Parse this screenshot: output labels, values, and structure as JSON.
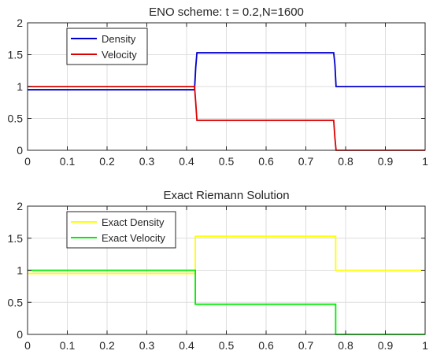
{
  "chart_data": [
    {
      "type": "line",
      "title": "ENO scheme:  t = 0.2,N=1600",
      "xlabel": "",
      "ylabel": "",
      "xlim": [
        0,
        1
      ],
      "ylim": [
        0,
        2
      ],
      "xticks": [
        0,
        0.1,
        0.2,
        0.3,
        0.4,
        0.5,
        0.6,
        0.7,
        0.8,
        0.9,
        1
      ],
      "xtick_labels": [
        "0",
        "0.1",
        "0.2",
        "0.3",
        "0.4",
        "0.5",
        "0.6",
        "0.7",
        "0.8",
        "0.9",
        "1"
      ],
      "yticks": [
        0,
        0.5,
        1,
        1.5,
        2
      ],
      "ytick_labels": [
        "0",
        "0.5",
        "1",
        "1.5",
        "2"
      ],
      "grid": true,
      "legend_position": "top-left",
      "series": [
        {
          "name": "Density",
          "color": "#0000cc",
          "x": [
            0,
            0.42,
            0.423,
            0.426,
            0.77,
            0.773,
            0.776,
            1
          ],
          "y": [
            0.95,
            0.95,
            1.3,
            1.53,
            1.53,
            1.35,
            1.0,
            1.0
          ]
        },
        {
          "name": "Velocity",
          "color": "#dd0000",
          "x": [
            0,
            0.42,
            0.423,
            0.426,
            0.77,
            0.773,
            0.776,
            1
          ],
          "y": [
            1.0,
            1.0,
            0.75,
            0.47,
            0.47,
            0.2,
            0.0,
            0.0
          ]
        }
      ]
    },
    {
      "type": "line",
      "title": "Exact Riemann Solution",
      "xlabel": "",
      "ylabel": "",
      "xlim": [
        0,
        1
      ],
      "ylim": [
        0,
        2
      ],
      "xticks": [
        0,
        0.1,
        0.2,
        0.3,
        0.4,
        0.5,
        0.6,
        0.7,
        0.8,
        0.9,
        1
      ],
      "xtick_labels": [
        "0",
        "0.1",
        "0.2",
        "0.3",
        "0.4",
        "0.5",
        "0.6",
        "0.7",
        "0.8",
        "0.9",
        "1"
      ],
      "yticks": [
        0,
        0.5,
        1,
        1.5,
        2
      ],
      "ytick_labels": [
        "0",
        "0.5",
        "1",
        "1.5",
        "2"
      ],
      "grid": true,
      "legend_position": "top-left",
      "series": [
        {
          "name": "Exact Density",
          "color": "#ffff00",
          "x": [
            0,
            0.422,
            0.422,
            0.775,
            0.775,
            1
          ],
          "y": [
            0.95,
            0.95,
            1.53,
            1.53,
            1.0,
            1.0
          ]
        },
        {
          "name": "Exact Velocity",
          "color": "#00ee00",
          "x": [
            0,
            0.422,
            0.422,
            0.775,
            0.775,
            1
          ],
          "y": [
            1.0,
            1.0,
            0.47,
            0.47,
            0.0,
            0.0
          ]
        }
      ]
    }
  ]
}
